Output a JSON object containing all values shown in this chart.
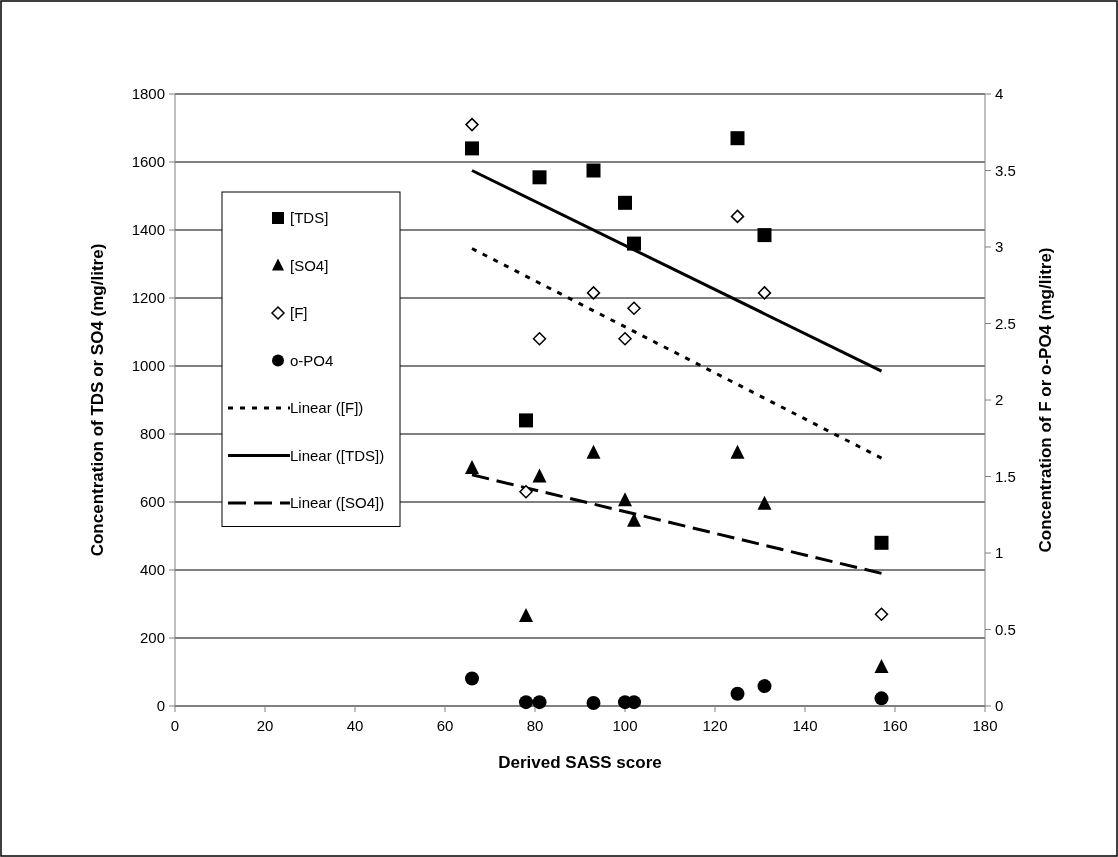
{
  "chart_data": {
    "type": "scatter",
    "xlabel": "Derived SASS score",
    "ylabel": "Concentration of TDS or SO4 (mg/litre)",
    "y2label": "Concentration of F or o-PO4 (mg/litre)",
    "xlim": [
      0,
      180
    ],
    "xticks": [
      0,
      20,
      40,
      60,
      80,
      100,
      120,
      140,
      160,
      180
    ],
    "ylim": [
      0,
      1800
    ],
    "yticks": [
      0,
      200,
      400,
      600,
      800,
      1000,
      1200,
      1400,
      1600,
      1800
    ],
    "y2lim": [
      0,
      4
    ],
    "y2ticks": [
      0,
      0.5,
      1,
      1.5,
      2,
      2.5,
      3,
      3.5,
      4
    ],
    "grid": "y",
    "legend": "left",
    "series": [
      {
        "name": "[TDS]",
        "color": "#000000",
        "marker": "square",
        "x": [
          66,
          78,
          81,
          93,
          100,
          102,
          125,
          131,
          157
        ],
        "values": [
          1640,
          840,
          1555,
          1575,
          1480,
          1360,
          1670,
          1385,
          480
        ]
      },
      {
        "name": "[SO4]",
        "color": "#000000",
        "marker": "triangle",
        "x": [
          66,
          78,
          81,
          93,
          100,
          102,
          125,
          131,
          157
        ],
        "values": [
          700,
          265,
          675,
          745,
          605,
          545,
          745,
          595,
          115
        ]
      },
      {
        "name": "[F]",
        "color": "#000000",
        "marker": "diamond",
        "axis": "y2",
        "x": [
          66,
          78,
          81,
          93,
          100,
          102,
          125,
          131,
          157
        ],
        "values": [
          3.8,
          1.4,
          2.4,
          2.7,
          2.4,
          2.6,
          3.2,
          2.7,
          0.6
        ]
      },
      {
        "name": "o-PO4",
        "color": "#000000",
        "marker": "circle",
        "axis": "y2",
        "x": [
          66,
          78,
          81,
          93,
          100,
          102,
          125,
          131,
          157
        ],
        "values": [
          0.18,
          0.025,
          0.025,
          0.02,
          0.025,
          0.025,
          0.08,
          0.13,
          0.05
        ]
      },
      {
        "name": "Linear ([F])",
        "type": "line",
        "color": "#000000",
        "line_style": "dotted",
        "axis": "y2",
        "x": [
          66,
          157
        ],
        "values": [
          2.99,
          1.62
        ]
      },
      {
        "name": "Linear ([TDS])",
        "type": "line",
        "color": "#000000",
        "line_style": "solid",
        "x": [
          66,
          157
        ],
        "values": [
          1575,
          985
        ]
      },
      {
        "name": "Linear ([SO4])",
        "type": "line",
        "color": "#000000",
        "line_style": "dashed",
        "x": [
          66,
          157
        ],
        "values": [
          680,
          390
        ]
      }
    ]
  }
}
